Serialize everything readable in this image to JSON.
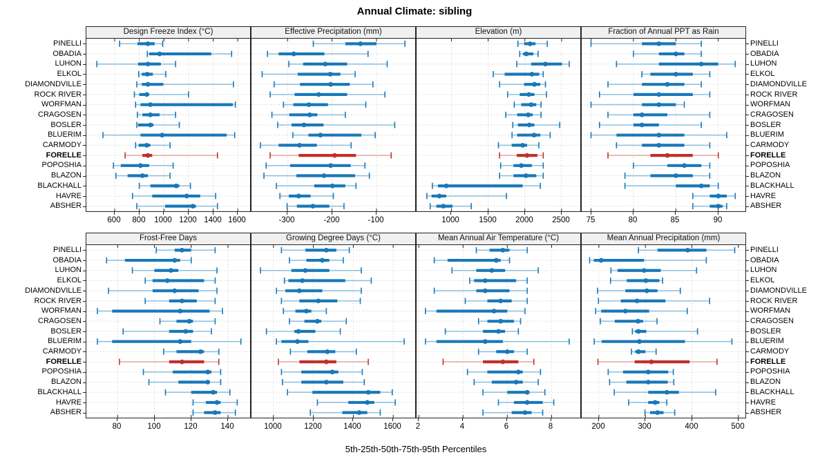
{
  "title": "Annual Climate: sibling",
  "caption": "5th-25th-50th-75th-95th Percentiles",
  "highlighted_station": "FORELLE",
  "stations": [
    "PINELLI",
    "OBADIA",
    "LUHON",
    "ELKOL",
    "DIAMONDVILLE",
    "ROCK RIVER",
    "WORFMAN",
    "CRAGOSEN",
    "BOSLER",
    "BLUERIM",
    "CARMODY",
    "FORELLE",
    "POPOSHIA",
    "BLAZON",
    "BLACKHALL",
    "HAVRE",
    "ABSHER"
  ],
  "colors": {
    "blue": "#1878b8",
    "light_blue": "#92c0de",
    "red": "#c0302a",
    "light_red": "#e3a59f",
    "grid": "#c6c6c6",
    "header_bg": "#f0f0f0",
    "border": "#222222",
    "text": "#000000"
  },
  "chart_data": [
    {
      "type": "percentile-whisker",
      "title": "Design Freeze Index (°C)",
      "xlim": [
        370,
        1700
      ],
      "ticks": [
        600,
        800,
        1000,
        1200,
        1400,
        1600
      ],
      "tick_labels": [
        "600",
        "800",
        "1000",
        "1200",
        "1400",
        "1600"
      ],
      "rows": [
        [
          640,
          785,
          870,
          925,
          990
        ],
        [
          865,
          880,
          965,
          1385,
          1550
        ],
        [
          455,
          790,
          870,
          975,
          1095
        ],
        [
          795,
          820,
          865,
          910,
          1015
        ],
        [
          780,
          820,
          870,
          995,
          1565
        ],
        [
          760,
          800,
          860,
          880,
          1200
        ],
        [
          770,
          810,
          890,
          1560,
          1580
        ],
        [
          785,
          825,
          890,
          965,
          1095
        ],
        [
          780,
          790,
          890,
          915,
          1125
        ],
        [
          505,
          810,
          985,
          1510,
          1575
        ],
        [
          770,
          795,
          860,
          890,
          1050
        ],
        [
          685,
          825,
          870,
          905,
          1435
        ],
        [
          590,
          650,
          810,
          880,
          1075
        ],
        [
          610,
          705,
          825,
          870,
          1050
        ],
        [
          800,
          890,
          1100,
          1125,
          1215
        ],
        [
          745,
          905,
          1185,
          1295,
          1420
        ],
        [
          780,
          1010,
          1235,
          1260,
          1435
        ]
      ]
    },
    {
      "type": "percentile-whisker",
      "title": "Effective Precipitation (mm)",
      "xlim": [
        -381,
        -13
      ],
      "ticks": [
        -300,
        -200,
        -100
      ],
      "tick_labels": [
        "-300",
        "-200",
        "-100"
      ],
      "rows": [
        [
          -242,
          -170,
          -136,
          -100,
          -36
        ],
        [
          -345,
          -320,
          -286,
          -217,
          -119
        ],
        [
          -297,
          -265,
          -215,
          -166,
          -76
        ],
        [
          -357,
          -277,
          -204,
          -181,
          -148
        ],
        [
          -330,
          -272,
          -203,
          -160,
          -108
        ],
        [
          -339,
          -284,
          -230,
          -166,
          -81
        ],
        [
          -309,
          -287,
          -252,
          -209,
          -124
        ],
        [
          -335,
          -296,
          -250,
          -233,
          -170
        ],
        [
          -322,
          -291,
          -263,
          -219,
          -59
        ],
        [
          -288,
          -253,
          -226,
          -134,
          -103
        ],
        [
          -361,
          -320,
          -273,
          -234,
          -157
        ],
        [
          -339,
          -275,
          -194,
          -146,
          -67
        ],
        [
          -348,
          -294,
          -203,
          -158,
          -126
        ],
        [
          -353,
          -280,
          -218,
          -148,
          -116
        ],
        [
          -325,
          -240,
          -199,
          -170,
          -146
        ],
        [
          -317,
          -297,
          -275,
          -248,
          -197
        ],
        [
          -301,
          -279,
          -243,
          -206,
          -173
        ]
      ]
    },
    {
      "type": "percentile-whisker",
      "title": "Elevation (m)",
      "xlim": [
        525,
        2755
      ],
      "ticks": [
        1000,
        1500,
        2000,
        2500
      ],
      "tick_labels": [
        "1000",
        "1500",
        "2000",
        "2500"
      ],
      "rows": [
        [
          1905,
          1990,
          2070,
          2145,
          2305
        ],
        [
          1930,
          1975,
          2020,
          2115,
          2180
        ],
        [
          1890,
          2085,
          2280,
          2505,
          2605
        ],
        [
          1570,
          1725,
          2095,
          2195,
          2250
        ],
        [
          1655,
          1990,
          2130,
          2210,
          2280
        ],
        [
          1765,
          1930,
          2055,
          2130,
          2295
        ],
        [
          1855,
          1950,
          2085,
          2155,
          2220
        ],
        [
          1740,
          1895,
          2045,
          2105,
          2220
        ],
        [
          1835,
          1905,
          2060,
          2130,
          2475
        ],
        [
          1825,
          1895,
          2125,
          2210,
          2345
        ],
        [
          1640,
          1820,
          1970,
          2030,
          2190
        ],
        [
          1655,
          1890,
          2030,
          2170,
          2250
        ],
        [
          1670,
          1845,
          1950,
          2095,
          2250
        ],
        [
          1655,
          1845,
          2015,
          2155,
          2250
        ],
        [
          740,
          815,
          930,
          1970,
          2210
        ],
        [
          665,
          730,
          835,
          930,
          1750
        ],
        [
          710,
          795,
          890,
          1015,
          1270
        ]
      ]
    },
    {
      "type": "percentile-whisker",
      "title": "Fraction of Annual PPT as Rain",
      "xlim": [
        73.9,
        93.2
      ],
      "ticks": [
        75,
        80,
        85,
        90
      ],
      "tick_labels": [
        "75",
        "80",
        "85",
        "90"
      ],
      "rows": [
        [
          75,
          81,
          83,
          85,
          88
        ],
        [
          80,
          83,
          85,
          86,
          88
        ],
        [
          78,
          83,
          88,
          90,
          92
        ],
        [
          81,
          82,
          85,
          87,
          89
        ],
        [
          77,
          81,
          84,
          86,
          88
        ],
        [
          76,
          80,
          83,
          87,
          89
        ],
        [
          75,
          81,
          83,
          85,
          86
        ],
        [
          77,
          80,
          81,
          84,
          89
        ],
        [
          76,
          80,
          81,
          83,
          88
        ],
        [
          75,
          78,
          83,
          86,
          91
        ],
        [
          78,
          81,
          83,
          86,
          89
        ],
        [
          77,
          82,
          84,
          87,
          90
        ],
        [
          80,
          84,
          86,
          88,
          89
        ],
        [
          79,
          82,
          85,
          87,
          89
        ],
        [
          79,
          85,
          88,
          89,
          90
        ],
        [
          87,
          89,
          90,
          91,
          92
        ],
        [
          87,
          89,
          90,
          90.5,
          91
        ]
      ]
    },
    {
      "type": "percentile-whisker",
      "title": "Frost-Free Days",
      "xlim": [
        63,
        152
      ],
      "ticks": [
        80,
        100,
        120,
        140
      ],
      "tick_labels": [
        "80",
        "100",
        "120",
        "140"
      ],
      "rows": [
        [
          101,
          111,
          115,
          120,
          133
        ],
        [
          74,
          84,
          111,
          114,
          120
        ],
        [
          88,
          100,
          109,
          113,
          134
        ],
        [
          95,
          99,
          107,
          127,
          133
        ],
        [
          75,
          99,
          111,
          124,
          134
        ],
        [
          95,
          108,
          115,
          123,
          133
        ],
        [
          69,
          77,
          114,
          130,
          137
        ],
        [
          103,
          112,
          119,
          121,
          133
        ],
        [
          83,
          108,
          117,
          121,
          131
        ],
        [
          69,
          77,
          114,
          120,
          147
        ],
        [
          105,
          112,
          125,
          127,
          135
        ],
        [
          81,
          108,
          115,
          127,
          135
        ],
        [
          94,
          110,
          129,
          131,
          136
        ],
        [
          97,
          113,
          129,
          130,
          136
        ],
        [
          106,
          120,
          132,
          134,
          141
        ],
        [
          121,
          128,
          134,
          136,
          145
        ],
        [
          121,
          127,
          133,
          136,
          144
        ]
      ]
    },
    {
      "type": "percentile-whisker",
      "title": "Growing Degree Days (°C)",
      "xlim": [
        890,
        1710
      ],
      "ticks": [
        1000,
        1200,
        1400,
        1600
      ],
      "tick_labels": [
        "1000",
        "1200",
        "1400",
        "1600"
      ],
      "rows": [
        [
          1040,
          1160,
          1265,
          1315,
          1380
        ],
        [
          1080,
          1165,
          1245,
          1280,
          1350
        ],
        [
          935,
          1090,
          1160,
          1280,
          1440
        ],
        [
          1055,
          1075,
          1145,
          1360,
          1490
        ],
        [
          1015,
          1060,
          1130,
          1245,
          1440
        ],
        [
          1040,
          1130,
          1225,
          1320,
          1435
        ],
        [
          1050,
          1110,
          1165,
          1190,
          1265
        ],
        [
          1080,
          1155,
          1220,
          1240,
          1365
        ],
        [
          965,
          1105,
          1125,
          1210,
          1335
        ],
        [
          1015,
          1040,
          1120,
          1175,
          1655
        ],
        [
          1085,
          1170,
          1270,
          1310,
          1415
        ],
        [
          1025,
          1130,
          1265,
          1315,
          1475
        ],
        [
          1040,
          1140,
          1295,
          1325,
          1445
        ],
        [
          1045,
          1140,
          1265,
          1350,
          1455
        ],
        [
          1070,
          1195,
          1475,
          1535,
          1595
        ],
        [
          1220,
          1375,
          1470,
          1505,
          1610
        ],
        [
          1185,
          1345,
          1430,
          1470,
          1535
        ]
      ]
    },
    {
      "type": "percentile-whisker",
      "title": "Mean Annual Air Temperature (°C)",
      "xlim": [
        1.9,
        9.3
      ],
      "ticks": [
        2,
        4,
        6,
        8
      ],
      "tick_labels": [
        "2",
        "4",
        "6",
        "8"
      ],
      "rows": [
        [
          4.6,
          5.2,
          5.8,
          6.1,
          6.9
        ],
        [
          2.7,
          3.3,
          5.5,
          5.7,
          6.1
        ],
        [
          3.5,
          4.6,
          5.3,
          5.9,
          7.4
        ],
        [
          4.3,
          4.5,
          5.0,
          6.4,
          6.9
        ],
        [
          2.7,
          4.6,
          5.0,
          6.1,
          6.9
        ],
        [
          4.1,
          5.1,
          5.7,
          6.2,
          6.9
        ],
        [
          2.3,
          2.8,
          5.4,
          6.0,
          6.8
        ],
        [
          4.7,
          5.1,
          5.7,
          6.3,
          6.6
        ],
        [
          3.2,
          4.9,
          5.6,
          5.9,
          6.5
        ],
        [
          2.3,
          2.8,
          5.0,
          5.8,
          8.8
        ],
        [
          4.7,
          5.5,
          6.0,
          6.3,
          6.9
        ],
        [
          3.1,
          4.9,
          5.8,
          6.5,
          7.2
        ],
        [
          4.2,
          5.1,
          6.5,
          6.7,
          7.5
        ],
        [
          4.5,
          5.3,
          6.4,
          6.7,
          7.4
        ],
        [
          4.9,
          6.0,
          6.9,
          7.0,
          7.7
        ],
        [
          5.6,
          6.3,
          6.9,
          7.6,
          8.1
        ],
        [
          4.9,
          6.2,
          6.8,
          7.1,
          7.6
        ]
      ]
    },
    {
      "type": "percentile-whisker",
      "title": "Mean Annual Precipitation (mm)",
      "xlim": [
        163,
        515
      ],
      "ticks": [
        200,
        300,
        400,
        500
      ],
      "tick_labels": [
        "200",
        "300",
        "400",
        "500"
      ],
      "rows": [
        [
          285,
          326,
          391,
          431,
          492
        ],
        [
          180,
          189,
          205,
          297,
          431
        ],
        [
          226,
          240,
          297,
          333,
          410
        ],
        [
          225,
          260,
          301,
          330,
          337
        ],
        [
          197,
          257,
          303,
          326,
          375
        ],
        [
          199,
          247,
          282,
          343,
          438
        ],
        [
          193,
          205,
          257,
          308,
          390
        ],
        [
          203,
          234,
          284,
          295,
          325
        ],
        [
          272,
          278,
          285,
          302,
          412
        ],
        [
          190,
          206,
          287,
          385,
          486
        ],
        [
          270,
          278,
          285,
          300,
          323
        ],
        [
          198,
          277,
          313,
          395,
          454
        ],
        [
          220,
          252,
          306,
          349,
          360
        ],
        [
          223,
          259,
          306,
          348,
          361
        ],
        [
          233,
          306,
          346,
          372,
          451
        ],
        [
          264,
          306,
          321,
          330,
          346
        ],
        [
          299,
          310,
          326,
          339,
          363
        ]
      ]
    }
  ]
}
